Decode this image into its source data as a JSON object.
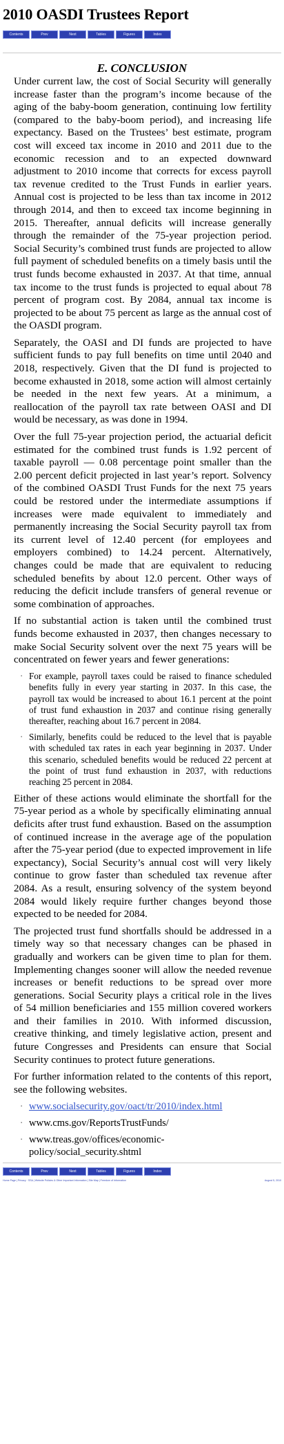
{
  "header": {
    "title": "2010 OASDI Trustees Report",
    "nav": [
      "Contents",
      "Prev",
      "Next",
      "Tables",
      "Figures",
      "Index"
    ]
  },
  "section": {
    "title": "E. CONCLUSION"
  },
  "paragraphs": [
    "Under current law, the cost of Social Security will generally increase faster than the program’s income because of the aging of the baby-boom generation, continuing low fertility (compared to the baby-boom period), and increasing life expectancy. Based on the Trustees’ best estimate, program cost will exceed tax income in 2010 and 2011 due to the economic recession and to an expected downward adjustment to 2010 income that corrects for excess payroll tax revenue credited to the Trust Funds in earlier years. Annual cost is projected to be less than tax income in 2012 through 2014, and then to exceed tax income beginning in 2015. Thereafter, annual deficits will increase generally through the remainder of the 75-year projection period. Social Security’s combined trust funds are projected to allow full payment of scheduled benefits on a timely basis until the trust funds become exhausted in 2037. At that time, annual tax income to the trust funds is projected to equal about 78 percent of program cost. By 2084, annual tax income is projected to be about 75 percent as large as the annual cost of the OASDI program.",
    "Separately, the OASI and DI funds are projected to have sufficient funds to pay full benefits on time until 2040 and 2018, respectively. Given that the DI fund is projected to become exhausted in 2018, some action will almost certainly be needed in the next few years. At a minimum, a reallocation of the payroll tax rate between OASI and DI would be necessary, as was done in 1994.",
    "Over the full 75-year projection period, the actuarial deficit estimated for the combined trust funds is 1.92 percent of taxable payroll — 0.08 percentage point smaller than the 2.00 percent deficit projected in last year’s report. Solvency of the combined OASDI Trust Funds for the next 75 years could be restored under the intermediate assumptions if increases were made equivalent to immediately and permanently increasing the Social Security payroll tax from its current level of 12.40 percent (for employees and employers combined) to 14.24 percent. Alternatively, changes could be made that are equivalent to reducing scheduled benefits by about 12.0 percent. Other ways of reducing the deficit include transfers of general revenue or some combination of approaches.",
    "If no substantial action is taken until the combined trust funds become exhausted in 2037, then changes necessary to make Social Security solvent over the next 75 years will be concentrated on fewer years and fewer generations:"
  ],
  "bullets": [
    "For example, payroll taxes could be raised to finance scheduled benefits fully in every year starting in 2037. In this case, the payroll tax would be increased to about 16.1 percent at the point of trust fund exhaustion in 2037 and continue rising generally thereafter, reaching about 16.7 percent in 2084.",
    "Similarly, benefits could be reduced to the level that is payable with scheduled tax rates in each year beginning in 2037. Under this scenario, scheduled benefits would be reduced 22 percent at the point of trust fund exhaustion in 2037, with reductions reaching 25 percent in 2084."
  ],
  "paragraphs2": [
    "Either of these actions would eliminate the shortfall for the 75-year period as a whole by specifically eliminating annual deficits after trust fund exhaustion. Based on the assumption of continued increase in the average age of the population after the 75-year period (due to expected improvement in life expectancy), Social Security’s annual cost will very likely continue to grow faster than scheduled tax revenue after 2084. As a result, ensuring solvency of the system beyond 2084 would likely require further changes beyond those expected to be needed for 2084.",
    "The projected trust fund shortfalls should be addressed in a timely way so that necessary changes can be phased in gradually and workers can be given time to plan for them. Implementing changes sooner will allow the needed revenue increases or benefit reductions to be spread over more generations. Social Security plays a critical role in the lives of 54 million beneficiaries and 155 million covered workers and their families in 2010. With informed discussion, creative thinking, and timely legislative action, present and future Congresses and Presidents can ensure that Social Security continues to protect future generations.",
    "For further information related to the contents of this report, see the following websites."
  ],
  "links": [
    "www.socialsecurity.gov/oact/tr/2010/index.html",
    "www.cms.gov/ReportsTrustFunds/",
    "www.treas.gov/offices/economic-policy/social_security.shtml"
  ],
  "footer": {
    "left": "Home Page | Privacy · SSA | Website Policies & Other Important Information | Site Map | Freedom of Information",
    "right": "August 5, 2010"
  }
}
